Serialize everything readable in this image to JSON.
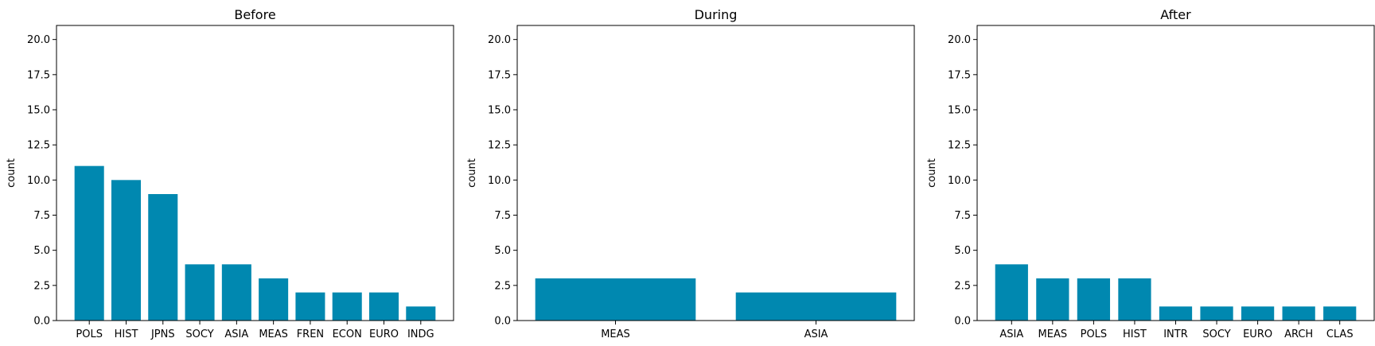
{
  "chart_data": [
    {
      "type": "bar",
      "title": "Before",
      "ylabel": "count",
      "xlabel": "",
      "ylim": [
        0,
        21
      ],
      "yticks": [
        0.0,
        2.5,
        5.0,
        7.5,
        10.0,
        12.5,
        15.0,
        17.5,
        20.0
      ],
      "categories": [
        "POLS",
        "HIST",
        "JPNS",
        "SOCY",
        "ASIA",
        "MEAS",
        "FREN",
        "ECON",
        "EURO",
        "INDG"
      ],
      "values": [
        11,
        10,
        9,
        4,
        4,
        3,
        2,
        2,
        2,
        1
      ],
      "color": "#0088b0",
      "grid": false
    },
    {
      "type": "bar",
      "title": "During",
      "ylabel": "count",
      "xlabel": "",
      "ylim": [
        0,
        21
      ],
      "yticks": [
        0.0,
        2.5,
        5.0,
        7.5,
        10.0,
        12.5,
        15.0,
        17.5,
        20.0
      ],
      "categories": [
        "MEAS",
        "ASIA"
      ],
      "values": [
        3,
        2
      ],
      "color": "#0088b0",
      "grid": false
    },
    {
      "type": "bar",
      "title": "After",
      "ylabel": "count",
      "xlabel": "",
      "ylim": [
        0,
        21
      ],
      "yticks": [
        0.0,
        2.5,
        5.0,
        7.5,
        10.0,
        12.5,
        15.0,
        17.5,
        20.0
      ],
      "categories": [
        "ASIA",
        "MEAS",
        "POLS",
        "HIST",
        "INTR",
        "SOCY",
        "EURO",
        "ARCH",
        "CLAS"
      ],
      "values": [
        4,
        3,
        3,
        3,
        1,
        1,
        1,
        1,
        1
      ],
      "color": "#0088b0",
      "grid": false
    }
  ]
}
